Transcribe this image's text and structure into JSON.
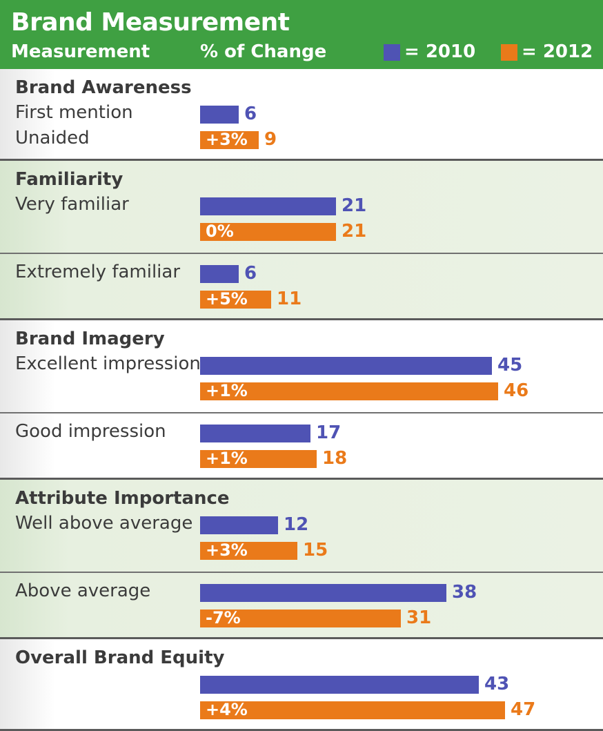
{
  "header": {
    "title": "Brand Measurement",
    "col_measurement": "Measurement",
    "col_change": "% of Change",
    "legend_2010": "= 2010",
    "legend_2012": "= 2012"
  },
  "colors": {
    "header_green": "#3fa042",
    "series_2010": "#4f53b4",
    "series_2012": "#ea7a1a"
  },
  "chart_data": {
    "type": "bar",
    "title": "Brand Measurement",
    "series": [
      {
        "name": "2010",
        "color": "#4f53b4"
      },
      {
        "name": "2012",
        "color": "#ea7a1a"
      }
    ],
    "sections": [
      {
        "title": "Brand Awareness",
        "groups": [
          {
            "rows": [
              {
                "label": "First mention",
                "series": "2010",
                "value": 6
              },
              {
                "label": "Unaided",
                "series": "2012",
                "value": 9,
                "change": "+3%"
              }
            ]
          }
        ]
      },
      {
        "title": "Familiarity",
        "groups": [
          {
            "rows": [
              {
                "label": "Very familiar",
                "series": "2010",
                "value": 21
              },
              {
                "label": "",
                "series": "2012",
                "value": 21,
                "change": "0%"
              }
            ]
          },
          {
            "rows": [
              {
                "label": "Extremely familiar",
                "series": "2010",
                "value": 6
              },
              {
                "label": "",
                "series": "2012",
                "value": 11,
                "change": "+5%"
              }
            ]
          }
        ]
      },
      {
        "title": "Brand Imagery",
        "groups": [
          {
            "rows": [
              {
                "label": "Excellent impression",
                "series": "2010",
                "value": 45
              },
              {
                "label": "",
                "series": "2012",
                "value": 46,
                "change": "+1%"
              }
            ]
          },
          {
            "rows": [
              {
                "label": "Good impression",
                "series": "2010",
                "value": 17
              },
              {
                "label": "",
                "series": "2012",
                "value": 18,
                "change": "+1%"
              }
            ]
          }
        ]
      },
      {
        "title": "Attribute Importance",
        "groups": [
          {
            "rows": [
              {
                "label": "Well above average",
                "series": "2010",
                "value": 12
              },
              {
                "label": "",
                "series": "2012",
                "value": 15,
                "change": "+3%"
              }
            ]
          },
          {
            "rows": [
              {
                "label": "Above average",
                "series": "2010",
                "value": 38
              },
              {
                "label": "",
                "series": "2012",
                "value": 31,
                "change": "-7%"
              }
            ]
          }
        ]
      },
      {
        "title": "Overall Brand Equity",
        "groups": [
          {
            "rows": [
              {
                "label": "",
                "series": "2010",
                "value": 43
              },
              {
                "label": "",
                "series": "2012",
                "value": 47,
                "change": "+4%"
              }
            ]
          }
        ]
      }
    ]
  }
}
